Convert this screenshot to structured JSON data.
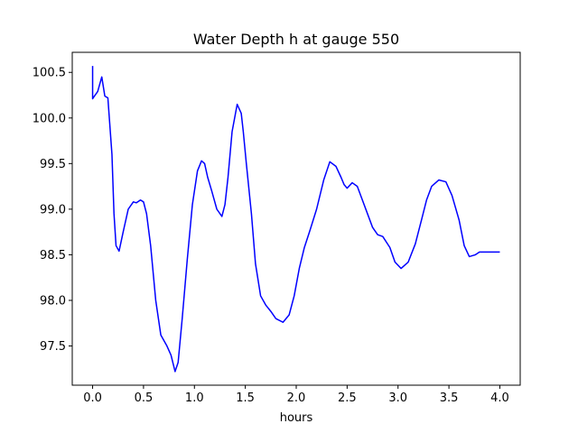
{
  "chart_data": {
    "type": "line",
    "title": "Water Depth h at gauge 550",
    "xlabel": "hours",
    "ylabel": "",
    "xlim": [
      -0.2,
      4.2
    ],
    "ylim": [
      97.07,
      100.72
    ],
    "xticks": [
      0.0,
      0.5,
      1.0,
      1.5,
      2.0,
      2.5,
      3.0,
      3.5,
      4.0
    ],
    "xtick_labels": [
      "0.0",
      "0.5",
      "1.0",
      "1.5",
      "2.0",
      "2.5",
      "3.0",
      "3.5",
      "4.0"
    ],
    "yticks": [
      97.5,
      98.0,
      98.5,
      99.0,
      99.5,
      100.0,
      100.5
    ],
    "ytick_labels": [
      "97.5",
      "98.0",
      "98.5",
      "99.0",
      "99.5",
      "100.0",
      "100.5"
    ],
    "grid": false,
    "series": [
      {
        "color": "#0000ff",
        "x": [
          0.0,
          0.0,
          0.005,
          0.05,
          0.09,
          0.12,
          0.15,
          0.19,
          0.21,
          0.23,
          0.26,
          0.3,
          0.35,
          0.4,
          0.43,
          0.47,
          0.5,
          0.53,
          0.57,
          0.62,
          0.67,
          0.73,
          0.77,
          0.81,
          0.84,
          0.88,
          0.93,
          0.98,
          1.03,
          1.07,
          1.1,
          1.13,
          1.17,
          1.22,
          1.27,
          1.3,
          1.33,
          1.37,
          1.42,
          1.46,
          1.48,
          1.51,
          1.56,
          1.6,
          1.65,
          1.7,
          1.75,
          1.8,
          1.87,
          1.93,
          1.98,
          2.03,
          2.08,
          2.13,
          2.2,
          2.27,
          2.33,
          2.39,
          2.44,
          2.47,
          2.5,
          2.55,
          2.6,
          2.65,
          2.7,
          2.75,
          2.8,
          2.85,
          2.92,
          2.97,
          3.03,
          3.1,
          3.17,
          3.23,
          3.28,
          3.33,
          3.4,
          3.47,
          3.53,
          3.6,
          3.65,
          3.7,
          3.76,
          3.8,
          3.85,
          3.9,
          3.95,
          4.0
        ],
        "y": [
          100.57,
          100.21,
          100.22,
          100.29,
          100.45,
          100.24,
          100.22,
          99.6,
          98.95,
          98.6,
          98.54,
          98.75,
          99.0,
          99.08,
          99.07,
          99.1,
          99.08,
          98.95,
          98.6,
          98.0,
          97.62,
          97.5,
          97.4,
          97.22,
          97.32,
          97.8,
          98.45,
          99.05,
          99.42,
          99.53,
          99.5,
          99.35,
          99.2,
          99.0,
          98.92,
          99.05,
          99.35,
          99.85,
          100.15,
          100.05,
          99.85,
          99.5,
          98.95,
          98.4,
          98.05,
          97.95,
          97.88,
          97.8,
          97.76,
          97.84,
          98.05,
          98.35,
          98.58,
          98.75,
          99.0,
          99.32,
          99.52,
          99.47,
          99.35,
          99.27,
          99.23,
          99.29,
          99.25,
          99.1,
          98.95,
          98.8,
          98.72,
          98.7,
          98.58,
          98.42,
          98.35,
          98.42,
          98.62,
          98.88,
          99.1,
          99.25,
          99.32,
          99.3,
          99.15,
          98.88,
          98.6,
          98.48,
          98.5,
          98.53,
          98.53,
          98.53,
          98.53,
          98.53
        ]
      }
    ]
  }
}
